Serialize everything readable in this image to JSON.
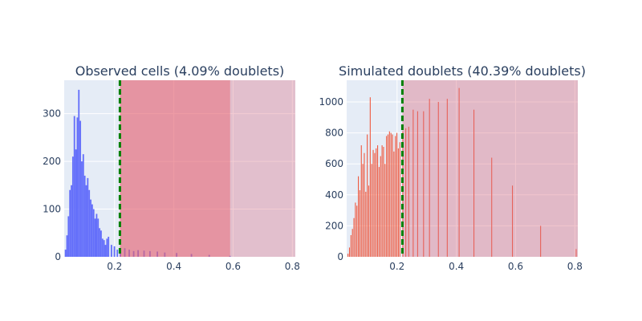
{
  "chart_data": [
    {
      "type": "bar",
      "title": "Observed cells (4.09% doublets)",
      "xlim": [
        0.03,
        0.81
      ],
      "ylim": [
        0,
        370
      ],
      "x_ticks": [
        0.2,
        0.4,
        0.6,
        0.8
      ],
      "x_tick_labels": [
        "0.2",
        "0.4",
        "0.6",
        "0.8"
      ],
      "y_ticks": [
        0,
        100,
        200,
        300
      ],
      "y_tick_labels": [
        "0",
        "100",
        "200",
        "300"
      ],
      "grid": true,
      "threshold": 0.218,
      "shaded_ranges": [
        [
          0.218,
          0.59
        ],
        [
          0.218,
          0.81
        ]
      ],
      "bar_width": 0.006,
      "x": [
        0.035,
        0.04,
        0.045,
        0.05,
        0.055,
        0.06,
        0.065,
        0.07,
        0.075,
        0.08,
        0.085,
        0.09,
        0.095,
        0.1,
        0.105,
        0.11,
        0.115,
        0.12,
        0.125,
        0.13,
        0.135,
        0.14,
        0.145,
        0.15,
        0.155,
        0.16,
        0.165,
        0.17,
        0.175,
        0.18,
        0.19,
        0.2,
        0.21,
        0.22,
        0.235,
        0.25,
        0.265,
        0.28,
        0.3,
        0.32,
        0.345,
        0.37,
        0.41,
        0.46,
        0.52,
        0.59
      ],
      "values": [
        15,
        45,
        85,
        140,
        150,
        210,
        295,
        225,
        292,
        350,
        285,
        200,
        215,
        170,
        150,
        165,
        140,
        120,
        110,
        100,
        80,
        90,
        80,
        60,
        55,
        38,
        35,
        25,
        38,
        42,
        25,
        22,
        15,
        10,
        18,
        15,
        12,
        14,
        13,
        12,
        11,
        9,
        8,
        6,
        4,
        2
      ]
    },
    {
      "type": "bar",
      "title": "Simulated doublets (40.39% doublets)",
      "xlim": [
        0.03,
        0.81
      ],
      "ylim": [
        0,
        1140
      ],
      "x_ticks": [
        0.2,
        0.4,
        0.6,
        0.8
      ],
      "x_tick_labels": [
        "0.2",
        "0.4",
        "0.6",
        "0.8"
      ],
      "y_ticks": [
        0,
        200,
        400,
        600,
        800,
        1000
      ],
      "y_tick_labels": [
        "0",
        "200",
        "400",
        "600",
        "800",
        "1000"
      ],
      "grid": true,
      "threshold": 0.218,
      "shaded_ranges": [
        [
          0.218,
          0.81
        ]
      ],
      "bar_width": 0.004,
      "x": [
        0.035,
        0.04,
        0.045,
        0.05,
        0.055,
        0.06,
        0.065,
        0.07,
        0.075,
        0.08,
        0.085,
        0.09,
        0.095,
        0.1,
        0.105,
        0.11,
        0.115,
        0.12,
        0.125,
        0.13,
        0.135,
        0.14,
        0.145,
        0.15,
        0.155,
        0.16,
        0.165,
        0.17,
        0.175,
        0.18,
        0.185,
        0.19,
        0.195,
        0.2,
        0.205,
        0.21,
        0.22,
        0.23,
        0.24,
        0.255,
        0.27,
        0.29,
        0.31,
        0.34,
        0.37,
        0.41,
        0.46,
        0.52,
        0.59,
        0.685,
        0.805
      ],
      "values": [
        20,
        60,
        140,
        180,
        250,
        350,
        330,
        520,
        430,
        720,
        600,
        670,
        420,
        790,
        460,
        1030,
        600,
        690,
        670,
        700,
        720,
        580,
        650,
        720,
        710,
        600,
        780,
        790,
        810,
        800,
        790,
        680,
        780,
        800,
        700,
        740,
        810,
        830,
        840,
        950,
        940,
        940,
        1020,
        1000,
        1020,
        1090,
        950,
        640,
        460,
        200,
        50
      ]
    }
  ]
}
